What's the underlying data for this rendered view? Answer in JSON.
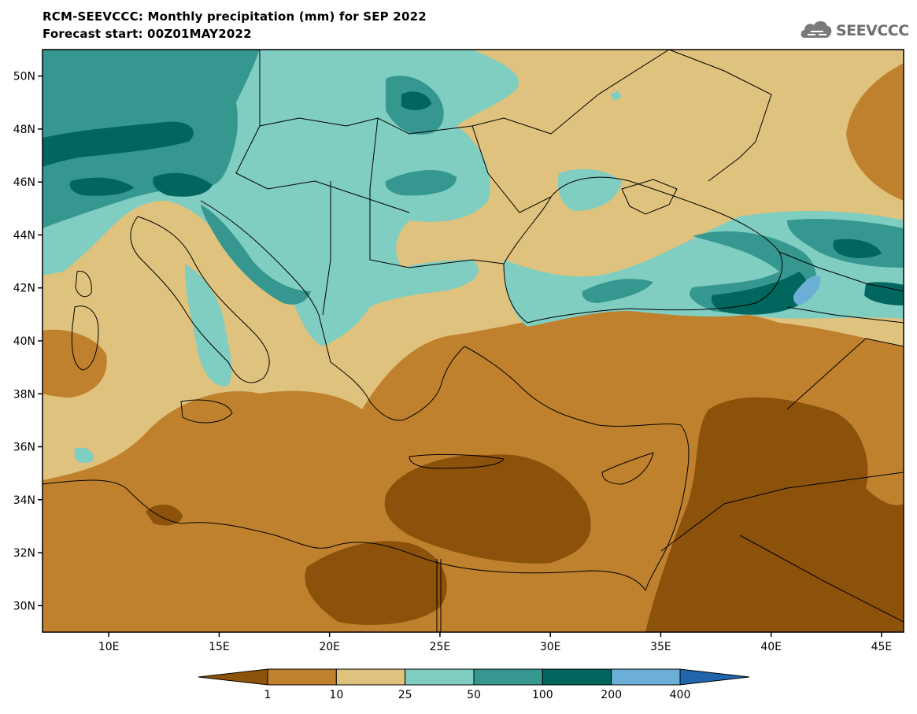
{
  "header": {
    "title": "RCM-SEEVCCC: Monthly precipitation (mm) for SEP 2022",
    "subtitle": "Forecast start: 00Z01MAY2022",
    "logo_text": "SEEVCCC"
  },
  "map": {
    "lon_range": [
      7,
      46
    ],
    "lat_range": [
      29,
      51
    ],
    "lat_ticks": [
      {
        "value": 30,
        "label": "30N"
      },
      {
        "value": 32,
        "label": "32N"
      },
      {
        "value": 34,
        "label": "34N"
      },
      {
        "value": 36,
        "label": "36N"
      },
      {
        "value": 38,
        "label": "38N"
      },
      {
        "value": 40,
        "label": "40N"
      },
      {
        "value": 42,
        "label": "42N"
      },
      {
        "value": 44,
        "label": "44N"
      },
      {
        "value": 46,
        "label": "46N"
      },
      {
        "value": 48,
        "label": "48N"
      },
      {
        "value": 50,
        "label": "50N"
      }
    ],
    "lon_ticks": [
      {
        "value": 10,
        "label": "10E"
      },
      {
        "value": 15,
        "label": "15E"
      },
      {
        "value": 20,
        "label": "20E"
      },
      {
        "value": 25,
        "label": "25E"
      },
      {
        "value": 30,
        "label": "30E"
      },
      {
        "value": 35,
        "label": "35E"
      },
      {
        "value": 40,
        "label": "40E"
      },
      {
        "value": 45,
        "label": "45E"
      }
    ]
  },
  "colorbar": {
    "levels": [
      "1",
      "10",
      "25",
      "50",
      "100",
      "200",
      "400"
    ],
    "colors": [
      "#8c510a",
      "#bf812d",
      "#dfc27d",
      "#80cdc1",
      "#35978f",
      "#01665e",
      "#6baed6",
      "#2166ac"
    ]
  }
}
